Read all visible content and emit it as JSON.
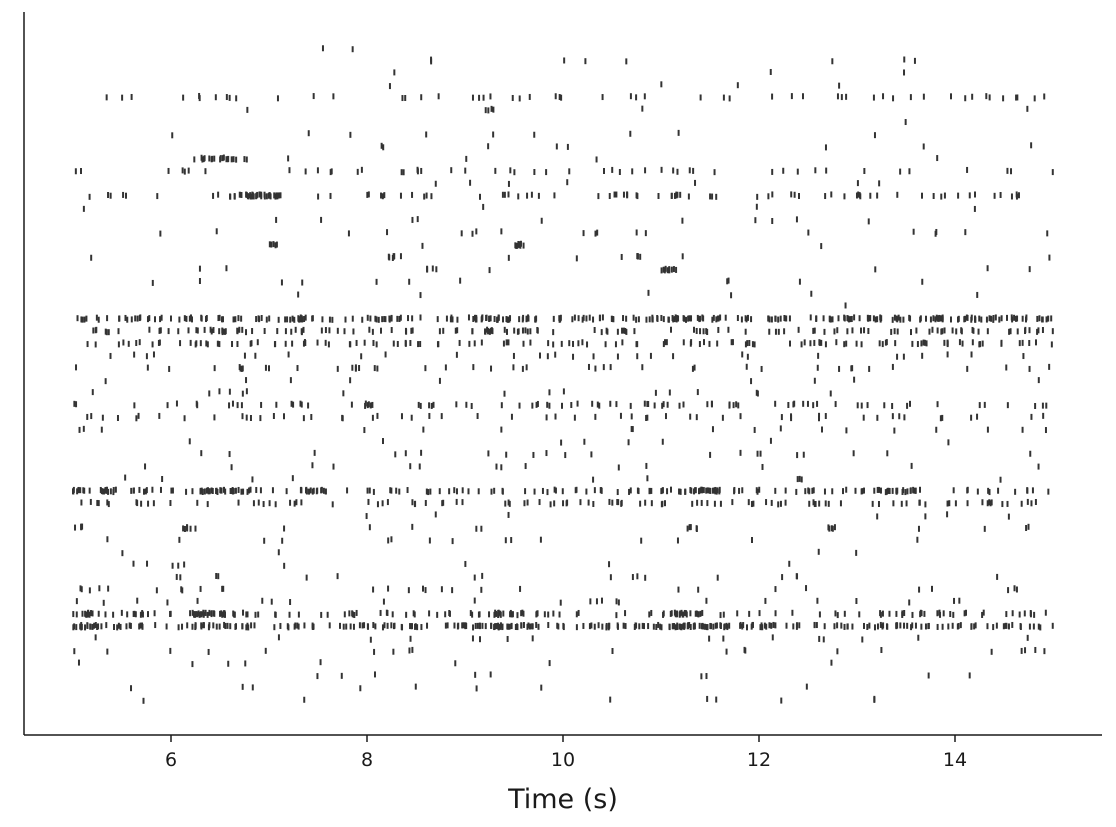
{
  "chart_data": {
    "type": "scatter",
    "subtype": "spike-raster",
    "title": "",
    "xlabel": "Time (s)",
    "ylabel": "",
    "xlim": [
      4.5,
      15.5
    ],
    "xticks": [
      6,
      8,
      10,
      12,
      14
    ],
    "xtick_labels": [
      "6",
      "8",
      "10",
      "12",
      "14"
    ],
    "yticks": [],
    "time_range": [
      5.0,
      15.0
    ],
    "grid": false,
    "legend": "none",
    "marker": "vertical tick",
    "spike_color": "#333333",
    "axis_color": "#1a1a1a",
    "neurons": [
      {
        "rate": 0.3,
        "bursts": []
      },
      {
        "rate": 0.5,
        "bursts": [
          [
            8.6,
            8.7
          ]
        ]
      },
      {
        "rate": 0.5,
        "bursts": []
      },
      {
        "rate": 0.4,
        "bursts": []
      },
      {
        "rate": 5.0,
        "bursts": []
      },
      {
        "rate": 0.2,
        "bursts": [
          [
            9.2,
            9.3
          ]
        ]
      },
      {
        "rate": 0.5,
        "bursts": []
      },
      {
        "rate": 0.8,
        "bursts": []
      },
      {
        "rate": 0.6,
        "bursts": []
      },
      {
        "rate": 0.8,
        "bursts": [
          [
            6.2,
            6.8
          ]
        ]
      },
      {
        "rate": 6.0,
        "bursts": []
      },
      {
        "rate": 1.0,
        "bursts": []
      },
      {
        "rate": 7.0,
        "bursts": [
          [
            6.6,
            7.1
          ],
          [
            11.1,
            11.2
          ]
        ]
      },
      {
        "rate": 0.5,
        "bursts": []
      },
      {
        "rate": 1.5,
        "bursts": []
      },
      {
        "rate": 2.0,
        "bursts": []
      },
      {
        "rate": 0.2,
        "bursts": [
          [
            7.0,
            7.1
          ],
          [
            9.5,
            9.6
          ]
        ]
      },
      {
        "rate": 0.4,
        "bursts": [
          [
            8.2,
            8.4
          ],
          [
            10.7,
            10.8
          ]
        ]
      },
      {
        "rate": 0.8,
        "bursts": [
          [
            8.6,
            8.7
          ],
          [
            11.0,
            11.2
          ]
        ]
      },
      {
        "rate": 1.0,
        "bursts": []
      },
      {
        "rate": 0.6,
        "bursts": []
      },
      {
        "rate": 0.2,
        "bursts": []
      },
      {
        "rate": 30.0,
        "bursts": [
          [
            9.1,
            9.4
          ],
          [
            10.9,
            11.3
          ],
          [
            13.8,
            13.9
          ]
        ]
      },
      {
        "rate": 15.0,
        "bursts": [
          [
            6.4,
            6.6
          ],
          [
            9.2,
            9.3
          ]
        ]
      },
      {
        "rate": 12.0,
        "bursts": []
      },
      {
        "rate": 4.0,
        "bursts": []
      },
      {
        "rate": 4.0,
        "bursts": []
      },
      {
        "rate": 1.0,
        "bursts": []
      },
      {
        "rate": 2.5,
        "bursts": []
      },
      {
        "rate": 9.0,
        "bursts": []
      },
      {
        "rate": 5.0,
        "bursts": []
      },
      {
        "rate": 1.5,
        "bursts": []
      },
      {
        "rate": 0.6,
        "bursts": []
      },
      {
        "rate": 2.5,
        "bursts": []
      },
      {
        "rate": 1.0,
        "bursts": []
      },
      {
        "rate": 1.5,
        "bursts": []
      },
      {
        "rate": 14.0,
        "bursts": [
          [
            5.0,
            5.5
          ],
          [
            6.3,
            6.8
          ],
          [
            7.3,
            7.6
          ],
          [
            11.0,
            11.6
          ],
          [
            13.2,
            13.6
          ]
        ]
      },
      {
        "rate": 10.0,
        "bursts": []
      },
      {
        "rate": 0.3,
        "bursts": []
      },
      {
        "rate": 0.6,
        "bursts": [
          [
            5.0,
            5.1
          ],
          [
            6.1,
            6.3
          ],
          [
            9.1,
            9.2
          ],
          [
            11.2,
            11.4
          ],
          [
            12.7,
            12.8
          ],
          [
            14.7,
            14.8
          ]
        ]
      },
      {
        "rate": 1.5,
        "bursts": []
      },
      {
        "rate": 0.4,
        "bursts": []
      },
      {
        "rate": 1.0,
        "bursts": []
      },
      {
        "rate": 2.5,
        "bursts": []
      },
      {
        "rate": 3.0,
        "bursts": []
      },
      {
        "rate": 3.0,
        "bursts": []
      },
      {
        "rate": 12.0,
        "bursts": [
          [
            5.0,
            5.2
          ],
          [
            6.2,
            6.7
          ],
          [
            9.3,
            9.6
          ],
          [
            11.0,
            11.5
          ]
        ]
      },
      {
        "rate": 28.0,
        "bursts": [
          [
            5.0,
            5.3
          ],
          [
            9.1,
            9.6
          ],
          [
            11.0,
            11.6
          ]
        ]
      },
      {
        "rate": 1.5,
        "bursts": []
      },
      {
        "rate": 1.5,
        "bursts": []
      },
      {
        "rate": 1.0,
        "bursts": []
      },
      {
        "rate": 1.0,
        "bursts": []
      },
      {
        "rate": 0.5,
        "bursts": []
      },
      {
        "rate": 0.5,
        "bursts": []
      }
    ]
  }
}
